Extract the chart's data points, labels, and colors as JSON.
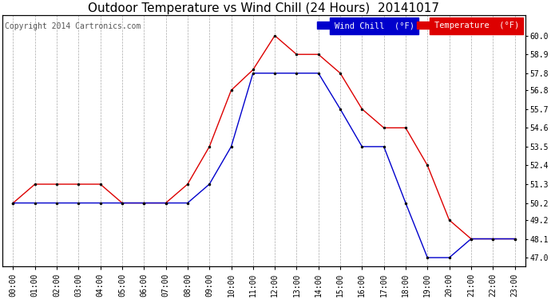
{
  "title": "Outdoor Temperature vs Wind Chill (24 Hours)  20141017",
  "copyright": "Copyright 2014 Cartronics.com",
  "legend_wind_chill": "Wind Chill  (°F)",
  "legend_temperature": "Temperature  (°F)",
  "hours": [
    0,
    1,
    2,
    3,
    4,
    5,
    6,
    7,
    8,
    9,
    10,
    11,
    12,
    13,
    14,
    15,
    16,
    17,
    18,
    19,
    20,
    21,
    22,
    23
  ],
  "temperature": [
    50.2,
    51.3,
    51.3,
    51.3,
    51.3,
    50.2,
    50.2,
    50.2,
    51.3,
    53.5,
    56.8,
    58.0,
    60.0,
    58.9,
    58.9,
    57.8,
    55.7,
    54.6,
    54.6,
    52.4,
    49.2,
    48.1,
    48.1,
    48.1
  ],
  "wind_chill": [
    50.2,
    50.2,
    50.2,
    50.2,
    50.2,
    50.2,
    50.2,
    50.2,
    50.2,
    51.3,
    53.5,
    57.8,
    57.8,
    57.8,
    57.8,
    55.7,
    53.5,
    53.5,
    50.2,
    47.0,
    47.0,
    48.1,
    48.1,
    48.1
  ],
  "ylim": [
    46.5,
    61.2
  ],
  "yticks": [
    47.0,
    48.1,
    49.2,
    50.2,
    51.3,
    52.4,
    53.5,
    54.6,
    55.7,
    56.8,
    57.8,
    58.9,
    60.0
  ],
  "bg_color": "#ffffff",
  "grid_color": "#aaaaaa",
  "temp_color": "#dd0000",
  "wind_color": "#0000cc",
  "title_fontsize": 11,
  "copyright_fontsize": 7,
  "tick_fontsize": 7,
  "legend_fontsize": 7.5
}
